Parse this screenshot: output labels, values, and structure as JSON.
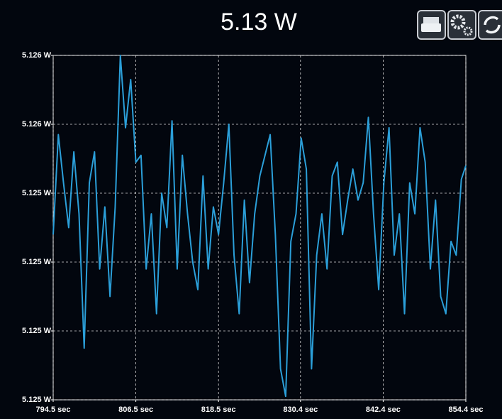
{
  "chart_data": {
    "type": "line",
    "title": "5.13 W",
    "x": [
      794.5,
      795.25,
      796,
      796.75,
      797.5,
      798.25,
      799,
      799.75,
      800.5,
      801.25,
      802,
      802.75,
      803.5,
      804.25,
      805,
      805.75,
      806.5,
      807.25,
      808,
      808.75,
      809.5,
      810.25,
      811,
      811.75,
      812.5,
      813.25,
      814,
      814.75,
      815.5,
      816.25,
      817,
      817.75,
      818.5,
      819.25,
      820,
      820.75,
      821.5,
      822.25,
      823,
      823.75,
      824.5,
      825.25,
      826,
      826.75,
      827.5,
      828.25,
      829,
      829.75,
      830.5,
      831.25,
      832,
      832.75,
      833.5,
      834.25,
      835,
      835.75,
      836.5,
      837.25,
      838,
      838.75,
      839.5,
      840.25,
      841,
      841.75,
      842.5,
      843.25,
      844,
      844.75,
      845.5,
      846.25,
      847,
      847.75,
      848.5,
      849.25,
      850,
      850.75,
      851.5,
      852.25,
      853,
      853.75,
      854.4
    ],
    "values": [
      5.12533,
      5.12562,
      5.12548,
      5.12535,
      5.12557,
      5.12539,
      5.125,
      5.12548,
      5.12557,
      5.12523,
      5.12541,
      5.12515,
      5.12541,
      5.12585,
      5.12564,
      5.12578,
      5.12554,
      5.12556,
      5.12523,
      5.12539,
      5.1251,
      5.12545,
      5.12535,
      5.12566,
      5.12523,
      5.12556,
      5.12539,
      5.12525,
      5.12517,
      5.1255,
      5.12523,
      5.12541,
      5.12533,
      5.12548,
      5.12565,
      5.12527,
      5.1251,
      5.12543,
      5.12519,
      5.12539,
      5.1255,
      5.12556,
      5.12562,
      5.12533,
      5.12494,
      5.12486,
      5.12531,
      5.12539,
      5.12561,
      5.12552,
      5.12494,
      5.12527,
      5.12539,
      5.12523,
      5.1255,
      5.12554,
      5.12533,
      5.12543,
      5.12552,
      5.12543,
      5.12548,
      5.12567,
      5.12539,
      5.12517,
      5.12548,
      5.12564,
      5.12527,
      5.12539,
      5.1251,
      5.12548,
      5.12539,
      5.12564,
      5.12554,
      5.12523,
      5.12543,
      5.12515,
      5.1251,
      5.12531,
      5.12527,
      5.12549,
      5.12553
    ],
    "color": "#2b9fd9",
    "xlim": [
      794.5,
      854.4
    ],
    "xticks": [
      {
        "value": 794.5,
        "label": "794.5 sec"
      },
      {
        "value": 806.5,
        "label": "806.5 sec"
      },
      {
        "value": 818.5,
        "label": "818.5 sec"
      },
      {
        "value": 830.4,
        "label": "830.4 sec"
      },
      {
        "value": 842.4,
        "label": "842.4 sec"
      },
      {
        "value": 854.4,
        "label": "854.4 sec"
      }
    ],
    "ylim": [
      5.12485,
      5.12585
    ],
    "yticks": [
      {
        "value": 5.12585,
        "label": "5.126 W"
      },
      {
        "value": 5.12565,
        "label": "5.126 W"
      },
      {
        "value": 5.12545,
        "label": "5.125 W"
      },
      {
        "value": 5.12525,
        "label": "5.125 W"
      },
      {
        "value": 5.12505,
        "label": "5.125 W"
      },
      {
        "value": 5.12485,
        "label": "5.125 W"
      }
    ],
    "grid": true
  }
}
